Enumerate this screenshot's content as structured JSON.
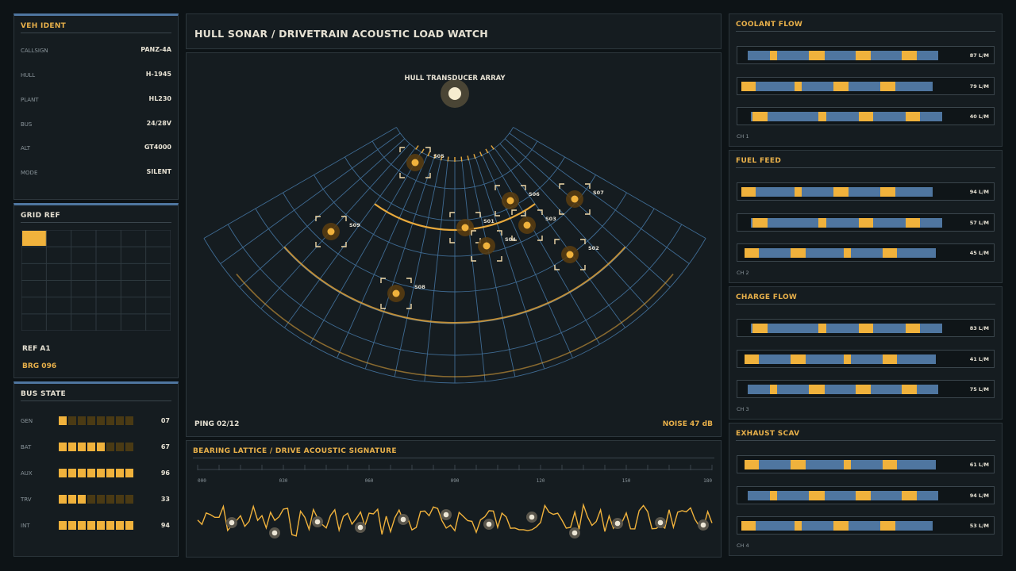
{
  "ident": {
    "title": "VEH IDENT",
    "rows": [
      {
        "k": "CALLSIGN",
        "v": "PANZ-4A"
      },
      {
        "k": "HULL",
        "v": "H-1945"
      },
      {
        "k": "PLANT",
        "v": "HL230"
      },
      {
        "k": "BUS",
        "v": "24/28V"
      },
      {
        "k": "ALT",
        "v": "GT4000"
      },
      {
        "k": "MODE",
        "v": "SILENT"
      }
    ]
  },
  "grid_ref": {
    "title": "GRID REF",
    "ref": "REF A1",
    "brg": "BRG 096",
    "selected_cell": "A1"
  },
  "bus_state": {
    "title": "BUS STATE",
    "rows": [
      {
        "k": "GEN",
        "lit": 1,
        "v": "07"
      },
      {
        "k": "BAT",
        "lit": 5,
        "v": "67"
      },
      {
        "k": "AUX",
        "lit": 8,
        "v": "96"
      },
      {
        "k": "TRV",
        "lit": 3,
        "v": "33"
      },
      {
        "k": "INT",
        "lit": 8,
        "v": "94"
      }
    ]
  },
  "sonar": {
    "title": "HULL SONAR / DRIVETRAIN ACOUSTIC LOAD WATCH",
    "array_label": "HULL TRANSDUCER ARRAY",
    "ping": "PING 02/12",
    "noise": "NOISE 47 dB",
    "contacts": [
      "S01",
      "S02",
      "S03",
      "S04",
      "S05",
      "S06",
      "S07",
      "S08",
      "S09"
    ]
  },
  "signature": {
    "title": "BEARING LATTICE / DRIVE ACOUSTIC SIGNATURE",
    "ticks": [
      "000",
      "030",
      "060",
      "090",
      "120",
      "150",
      "180"
    ]
  },
  "flows": [
    {
      "title": "COOLANT FLOW",
      "ch": "CH 1",
      "values": [
        "87 L/M",
        "79 L/M",
        "40 L/M"
      ]
    },
    {
      "title": "FUEL FEED",
      "ch": "CH 2",
      "values": [
        "94 L/M",
        "57 L/M",
        "45 L/M"
      ]
    },
    {
      "title": "CHARGE FLOW",
      "ch": "CH 3",
      "values": [
        "83 L/M",
        "41 L/M",
        "75 L/M"
      ]
    },
    {
      "title": "EXHAUST SCAV",
      "ch": "CH 4",
      "values": [
        "61 L/M",
        "94 L/M",
        "53 L/M"
      ]
    }
  ],
  "colors": {
    "accent": "#f0b23c",
    "blue": "#4f76a0",
    "panel": "#151c20"
  }
}
